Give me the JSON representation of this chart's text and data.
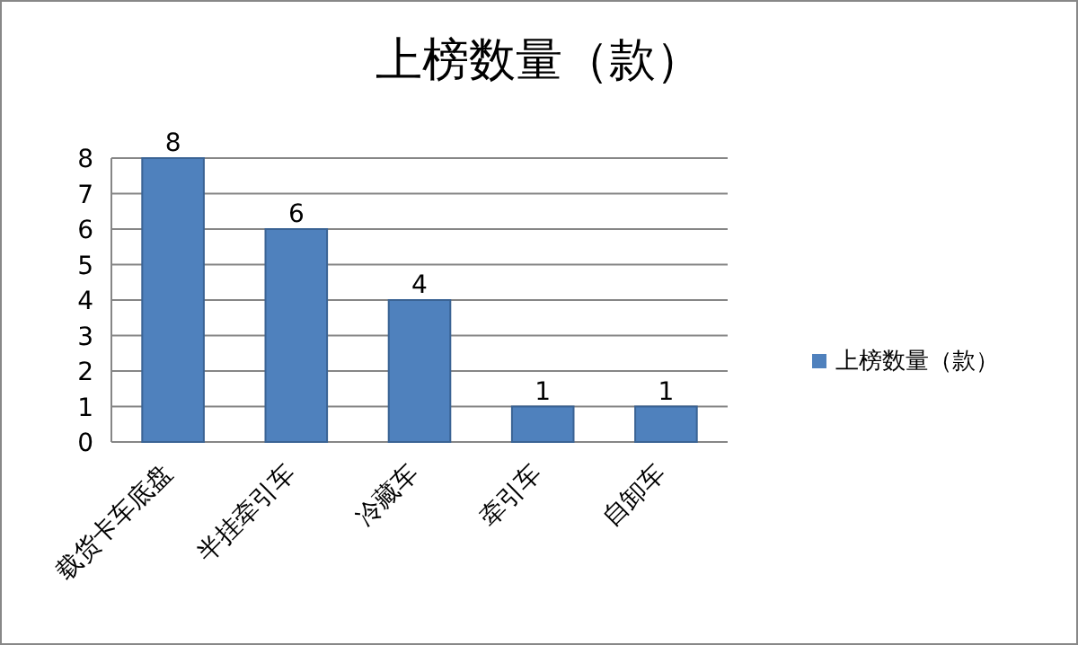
{
  "chart_data": {
    "type": "bar",
    "title": "上榜数量（款）",
    "categories": [
      "载货卡车底盘",
      "半挂牵引车",
      "冷藏车",
      "牵引车",
      "自卸车"
    ],
    "series": [
      {
        "name": "上榜数量（款）",
        "color": "#4f81bd",
        "values": [
          8,
          6,
          4,
          1,
          1
        ]
      }
    ],
    "ylim": [
      0,
      8
    ],
    "yticks": [
      0,
      1,
      2,
      3,
      4,
      5,
      6,
      7,
      8
    ],
    "grid": "y",
    "legend": "right",
    "data_labels": true
  }
}
